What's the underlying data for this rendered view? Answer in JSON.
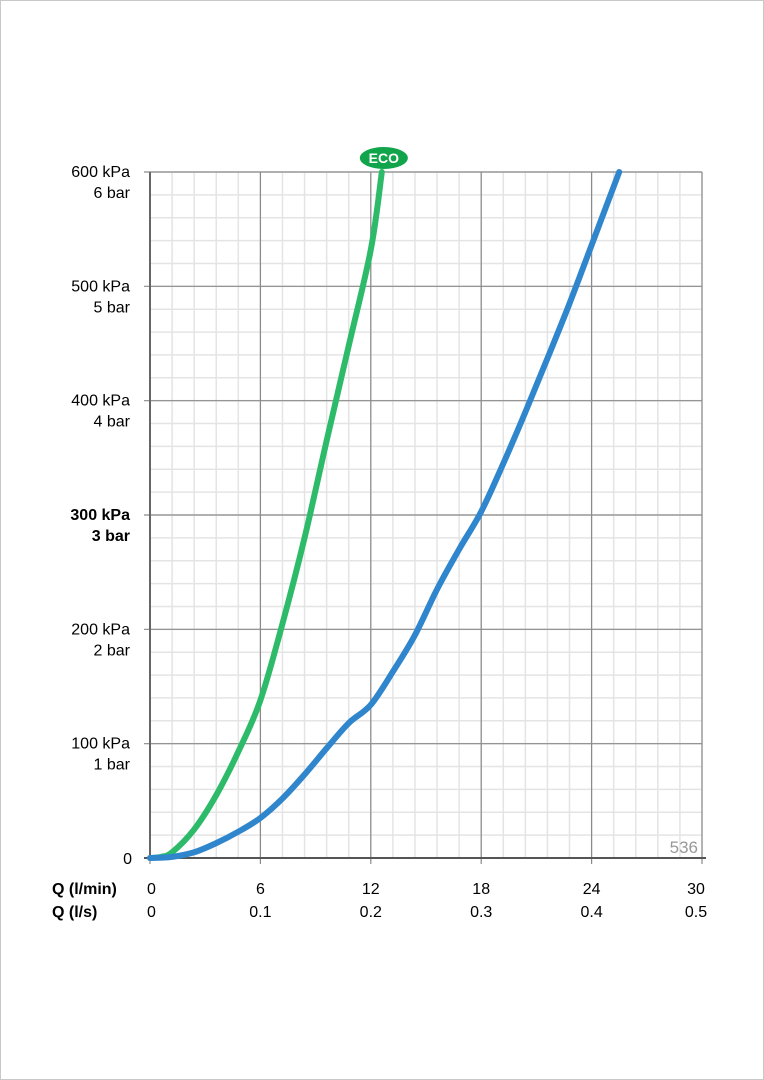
{
  "chart_data": {
    "type": "line",
    "x_axis": {
      "range": [
        0,
        30
      ],
      "ticks": [
        0,
        6,
        12,
        18,
        24,
        30
      ],
      "primary_label": "Q (l/min)",
      "primary_tick_labels": [
        "0",
        "6",
        "12",
        "18",
        "24",
        "30"
      ],
      "secondary_label": "Q (l/s)",
      "secondary_tick_labels": [
        "0",
        "0.1",
        "0.2",
        "0.3",
        "0.4",
        "0.5"
      ],
      "minor_step": 1.2
    },
    "y_axis": {
      "range": [
        0,
        600
      ],
      "unit": "kPa",
      "minor_step": 20,
      "ticks": [
        {
          "value": 0,
          "kpa": "0",
          "bar": "",
          "bold": false
        },
        {
          "value": 100,
          "kpa": "100 kPa",
          "bar": "1 bar",
          "bold": false
        },
        {
          "value": 200,
          "kpa": "200 kPa",
          "bar": "2 bar",
          "bold": false
        },
        {
          "value": 300,
          "kpa": "300 kPa",
          "bar": "3 bar",
          "bold": true
        },
        {
          "value": 400,
          "kpa": "400 kPa",
          "bar": "4 bar",
          "bold": false
        },
        {
          "value": 500,
          "kpa": "500 kPa",
          "bar": "5 bar",
          "bold": false
        },
        {
          "value": 600,
          "kpa": "600 kPa",
          "bar": "6 bar",
          "bold": false
        }
      ]
    },
    "grid": true,
    "series": [
      {
        "name": "ECO",
        "color": "#2dbb6a",
        "label_color": "#10a54a",
        "points": [
          [
            0,
            0
          ],
          [
            0.6,
            1
          ],
          [
            1.2,
            5
          ],
          [
            2.4,
            25
          ],
          [
            3.6,
            55
          ],
          [
            4.8,
            93
          ],
          [
            6,
            138
          ],
          [
            7.2,
            205
          ],
          [
            8.4,
            280
          ],
          [
            9.6,
            365
          ],
          [
            10.8,
            448
          ],
          [
            12,
            532
          ],
          [
            12.6,
            600
          ]
        ]
      },
      {
        "color": "#2f86cc",
        "points": [
          [
            0,
            0
          ],
          [
            1.2,
            1
          ],
          [
            2.4,
            5
          ],
          [
            3.6,
            13
          ],
          [
            4.8,
            23
          ],
          [
            6,
            35
          ],
          [
            7.2,
            52
          ],
          [
            8.4,
            73
          ],
          [
            9.6,
            96
          ],
          [
            10.8,
            118
          ],
          [
            12,
            134
          ],
          [
            13.2,
            163
          ],
          [
            14.4,
            195
          ],
          [
            15.6,
            235
          ],
          [
            16.8,
            270
          ],
          [
            18,
            303
          ],
          [
            19.2,
            345
          ],
          [
            20.4,
            390
          ],
          [
            21.6,
            437
          ],
          [
            22.8,
            485
          ],
          [
            24,
            536
          ],
          [
            25.5,
            600
          ]
        ]
      }
    ],
    "annotation": "536"
  }
}
